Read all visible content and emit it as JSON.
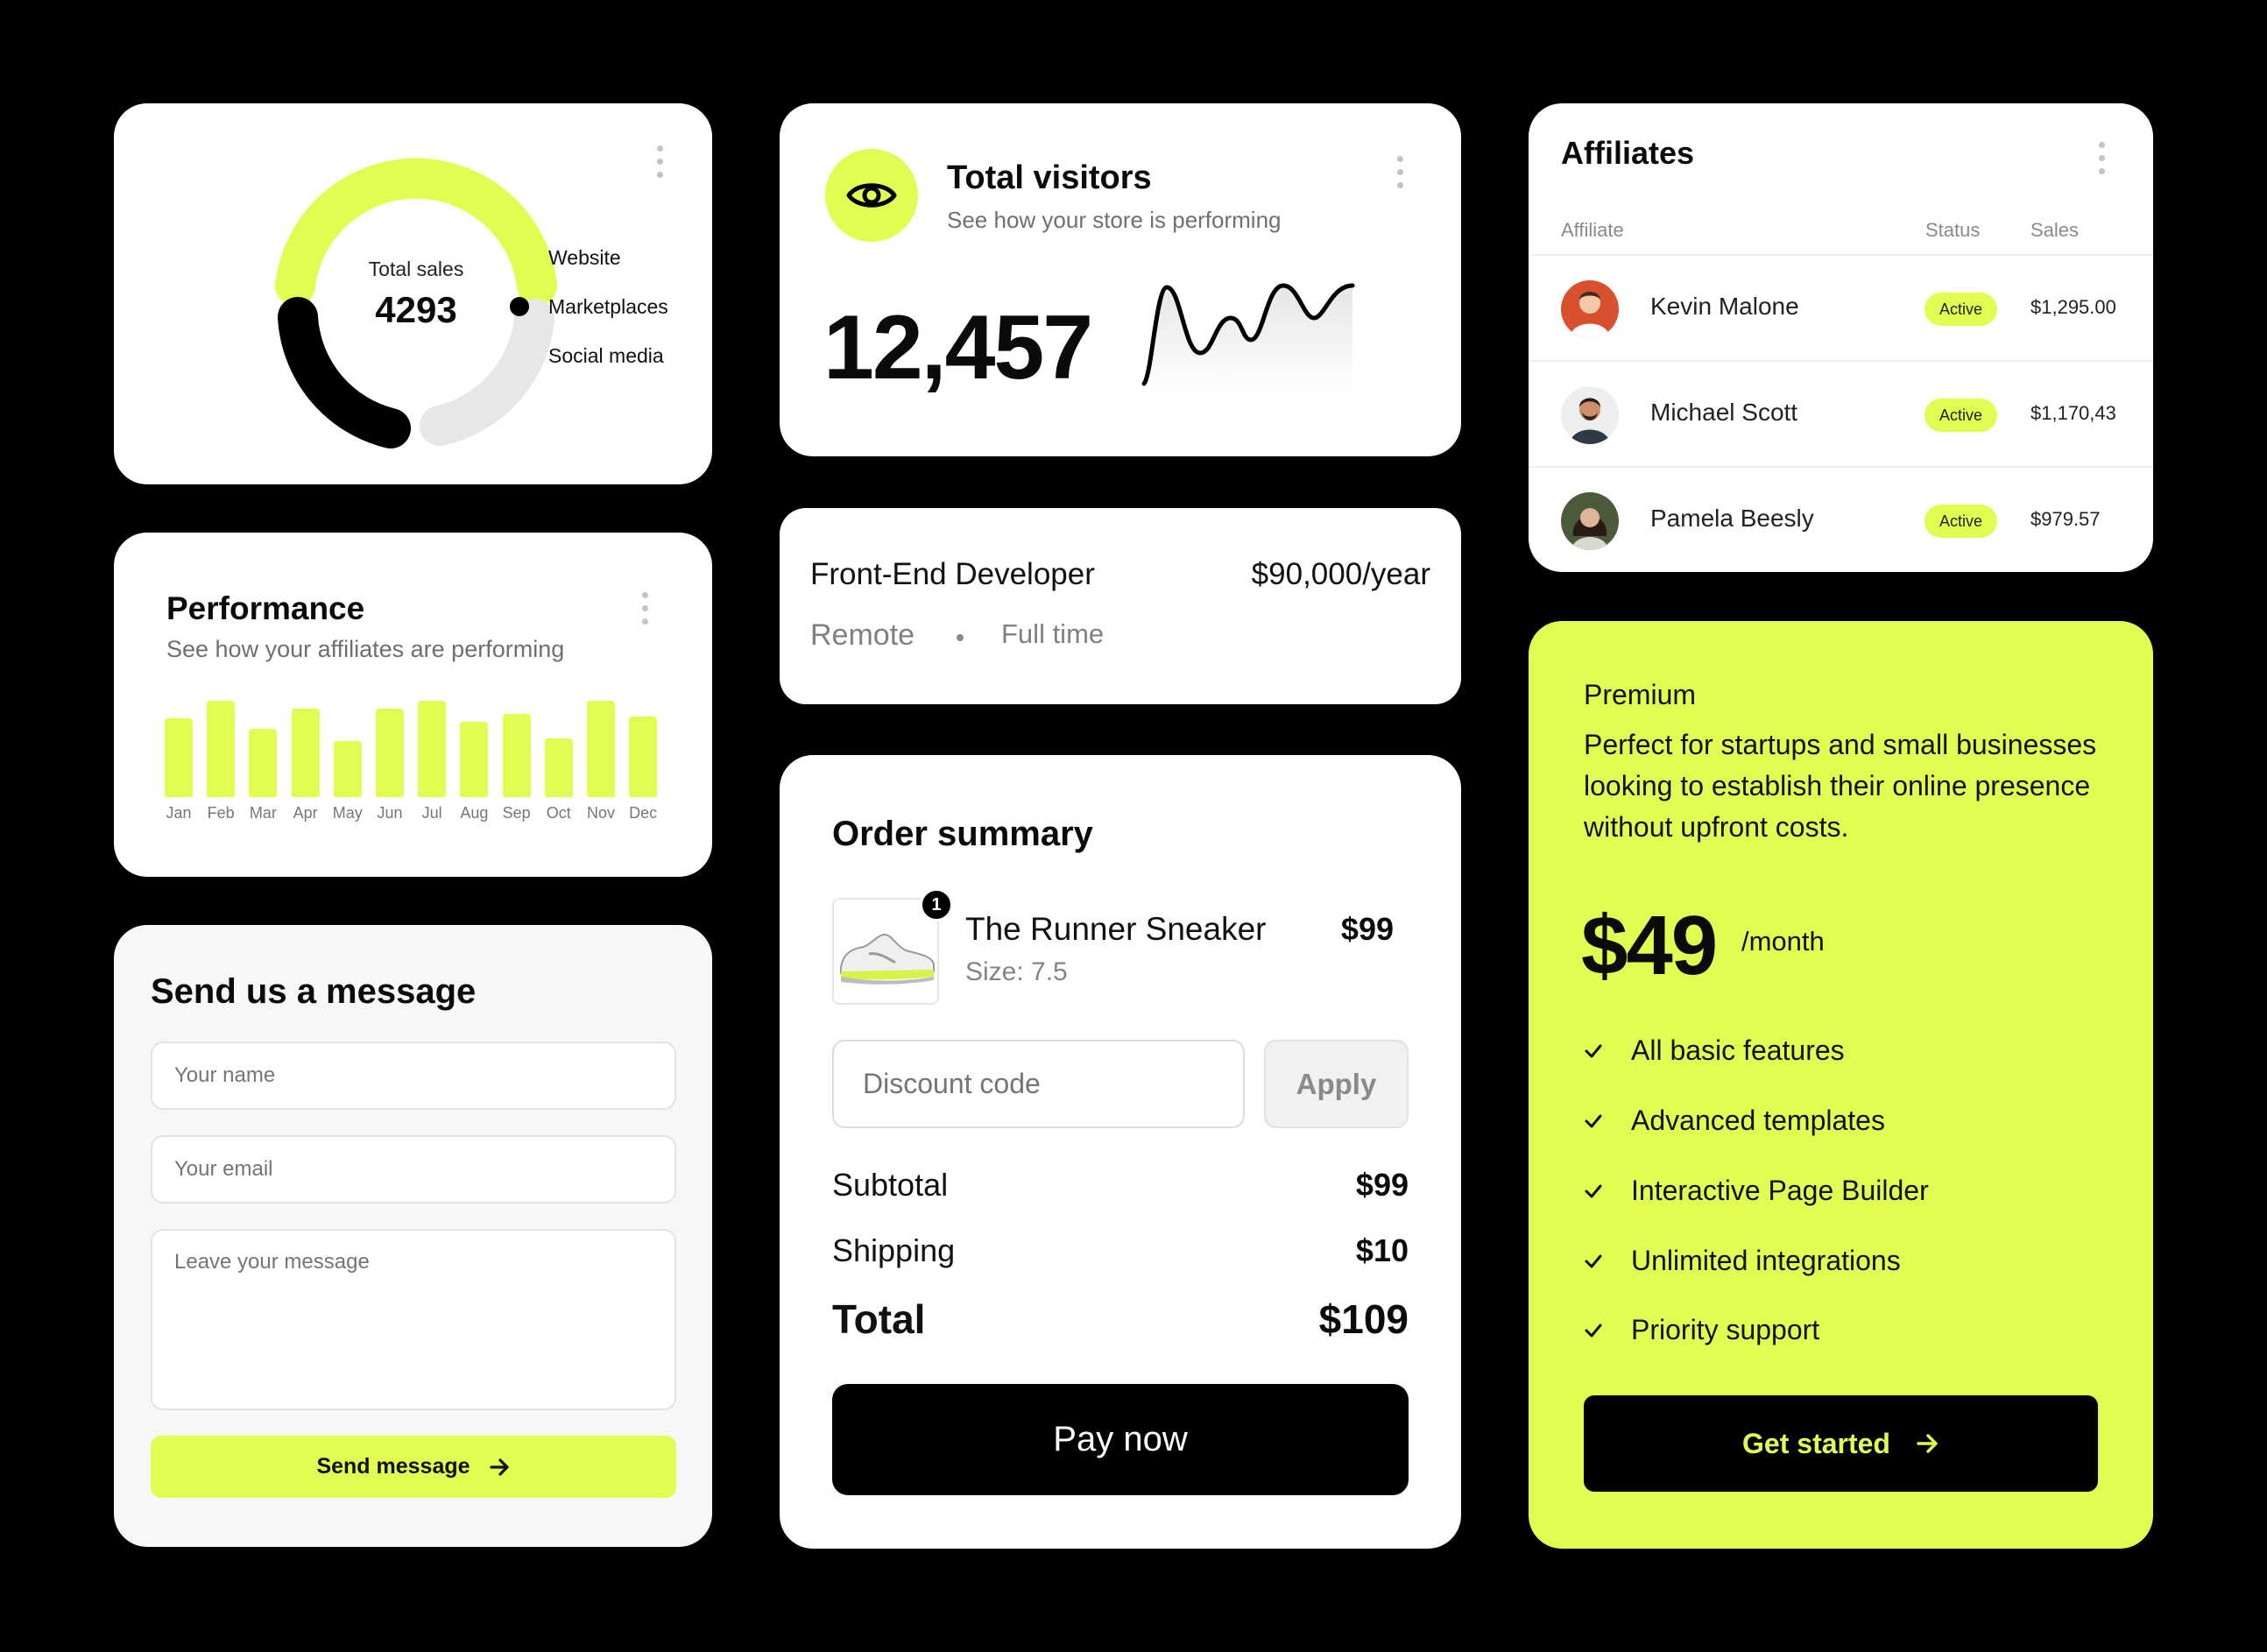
{
  "colors": {
    "accent": "#e2fd52",
    "dark": "#000000",
    "muted": "#e5e7e8"
  },
  "sales": {
    "label": "Total sales",
    "value": "4293",
    "legend": [
      {
        "label": "Website",
        "color": "#e2fd52"
      },
      {
        "label": "Marketplaces",
        "color": "#000000"
      },
      {
        "label": "Social media",
        "color": "#e5e7e8"
      }
    ]
  },
  "visitors": {
    "icon": "eye-icon",
    "title": "Total visitors",
    "subtitle": "See how your store is performing",
    "value": "12,457"
  },
  "affiliates": {
    "title": "Affiliates",
    "headers": {
      "affiliate": "Affiliate",
      "status": "Status",
      "sales": "Sales"
    },
    "rows": [
      {
        "name": "Kevin Malone",
        "status": "Active",
        "sales": "$1,295.00"
      },
      {
        "name": "Michael Scott",
        "status": "Active",
        "sales": "$1,170,43"
      },
      {
        "name": "Pamela Beesly",
        "status": "Active",
        "sales": "$979.57"
      }
    ]
  },
  "performance": {
    "title": "Performance",
    "subtitle": "See how your affiliates are performing",
    "months": [
      "Jan",
      "Feb",
      "Mar",
      "Apr",
      "May",
      "Jun",
      "Jul",
      "Aug",
      "Sep",
      "Oct",
      "Nov",
      "Dec"
    ],
    "levels": [
      0.8,
      0.98,
      0.7,
      0.9,
      0.57,
      0.9,
      0.98,
      0.77,
      0.85,
      0.6,
      0.98,
      0.82
    ]
  },
  "job": {
    "title": "Front-End Developer",
    "salary": "$90,000/year",
    "location": "Remote",
    "type": "Full time"
  },
  "message": {
    "title": "Send us a message",
    "name_placeholder": "Your name",
    "email_placeholder": "Your email",
    "message_placeholder": "Leave your message",
    "send_label": "Send message"
  },
  "order": {
    "title": "Order summary",
    "product": {
      "name": "The Runner Sneaker",
      "price": "$99",
      "size": "Size: 7.5",
      "quantity": "1"
    },
    "discount_placeholder": "Discount code",
    "apply_label": "Apply",
    "subtotal_label": "Subtotal",
    "subtotal": "$99",
    "shipping_label": "Shipping",
    "shipping": "$10",
    "total_label": "Total",
    "total": "$109",
    "pay_label": "Pay now"
  },
  "premium": {
    "name": "Premium",
    "description": "Perfect for startups and small businesses looking to establish their online presence without upfront costs.",
    "price": "$49",
    "period": "/month",
    "features": [
      "All basic features",
      "Advanced templates",
      "Interactive Page Builder",
      "Unlimited integrations",
      "Priority support"
    ],
    "cta_label": "Get started"
  }
}
